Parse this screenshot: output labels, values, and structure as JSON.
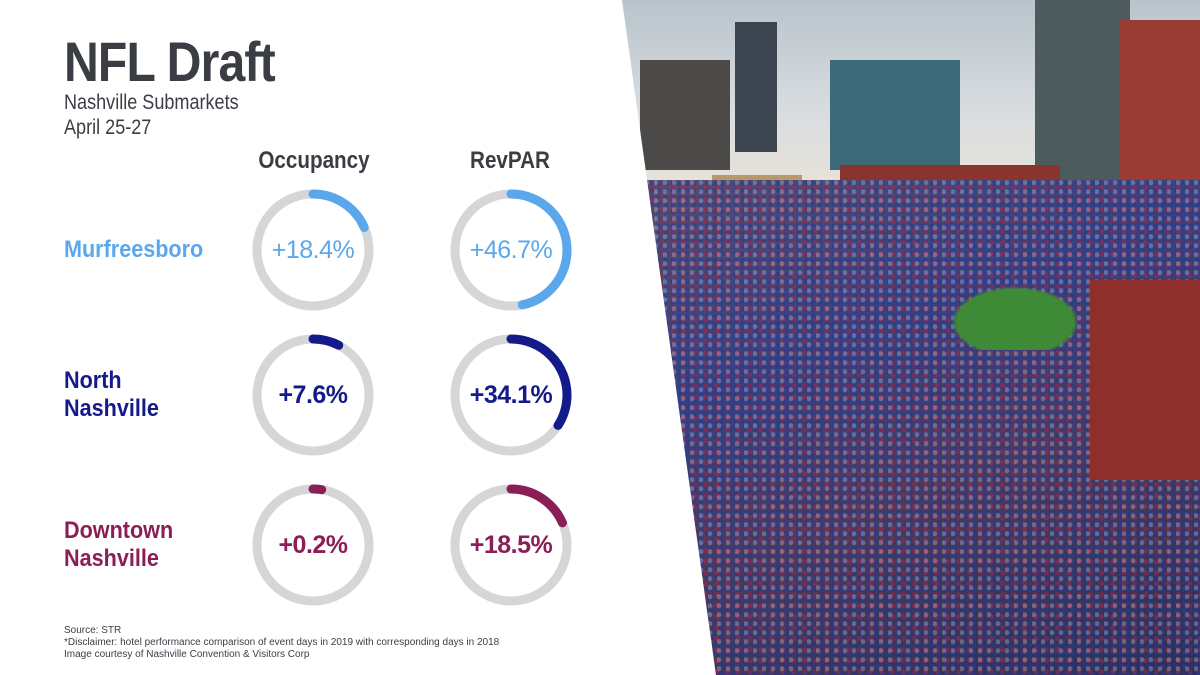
{
  "header": {
    "title": "NFL Draft",
    "subtitle": "Nashville Submarkets",
    "dates": "April 25-27"
  },
  "columns": {
    "occupancy": "Occupancy",
    "revpar": "RevPAR"
  },
  "colors": {
    "text_dark": "#3a3e44",
    "track": "#d6d6d6",
    "murfreesboro": "#5aa7ec",
    "north_nashville": "#141a8a",
    "downtown_nashville": "#8a1f56"
  },
  "chart_data": {
    "type": "donut",
    "unit": "% change",
    "series": [
      {
        "name": "Occupancy",
        "values": [
          18.4,
          7.6,
          0.2
        ]
      },
      {
        "name": "RevPAR",
        "values": [
          46.7,
          34.1,
          18.5
        ]
      }
    ],
    "categories": [
      "Murfreesboro",
      "North Nashville",
      "Downtown Nashville"
    ],
    "rows": [
      {
        "label_lines": [
          "Murfreesboro"
        ],
        "color": "#5aa7ec",
        "occupancy": {
          "label": "+18.4%",
          "value": 18.4
        },
        "revpar": {
          "label": "+46.7%",
          "value": 46.7
        }
      },
      {
        "label_lines": [
          "North",
          "Nashville"
        ],
        "color": "#141a8a",
        "occupancy": {
          "label": "+7.6%",
          "value": 7.6
        },
        "revpar": {
          "label": "+34.1%",
          "value": 34.1
        }
      },
      {
        "label_lines": [
          "Downtown",
          "Nashville"
        ],
        "color": "#8a1f56",
        "occupancy": {
          "label": "+0.2%",
          "value": 0.2
        },
        "revpar": {
          "label": "+18.5%",
          "value": 18.5
        }
      }
    ]
  },
  "footnotes": {
    "source": "Source: STR",
    "disclaimer": "*Disclaimer: hotel performance comparison of event days in 2019 with corresponding days in 2018",
    "credit": "Image courtesy of Nashville Convention & Visitors Corp"
  },
  "photo": {
    "icon": "crowd-photo"
  }
}
